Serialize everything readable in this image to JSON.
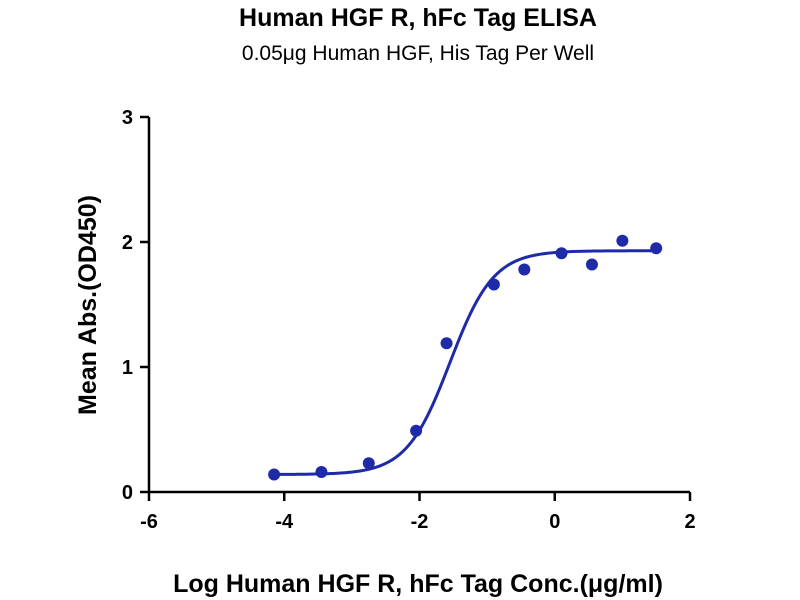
{
  "chart_data": {
    "type": "scatter",
    "title": "Human HGF R, hFc Tag ELISA",
    "subtitle": "0.05μg Human HGF, His Tag Per Well",
    "xlabel": "Log Human HGF R, hFc Tag Conc.(μg/ml)",
    "ylabel": "Mean Abs.(OD450)",
    "xlim": [
      -6,
      2
    ],
    "ylim": [
      0,
      3
    ],
    "xticks": [
      -6,
      -4,
      -2,
      0,
      2
    ],
    "yticks": [
      0,
      1,
      2,
      3
    ],
    "grid": false,
    "color": "#1f2aa8",
    "series": [
      {
        "points": [
          {
            "x": -4.15,
            "y": 0.14
          },
          {
            "x": -3.45,
            "y": 0.16
          },
          {
            "x": -2.75,
            "y": 0.23
          },
          {
            "x": -2.05,
            "y": 0.49
          },
          {
            "x": -1.6,
            "y": 1.19
          },
          {
            "x": -0.9,
            "y": 1.66
          },
          {
            "x": -0.45,
            "y": 1.78
          },
          {
            "x": 0.1,
            "y": 1.91
          },
          {
            "x": 0.55,
            "y": 1.82
          },
          {
            "x": 1.0,
            "y": 2.01
          },
          {
            "x": 1.5,
            "y": 1.95
          }
        ],
        "fit": {
          "model": "4PL",
          "bottom": 0.14,
          "top": 1.93,
          "logEC50": -1.55,
          "hill": 1.35,
          "x_range": [
            -4.15,
            1.5
          ]
        }
      }
    ]
  }
}
